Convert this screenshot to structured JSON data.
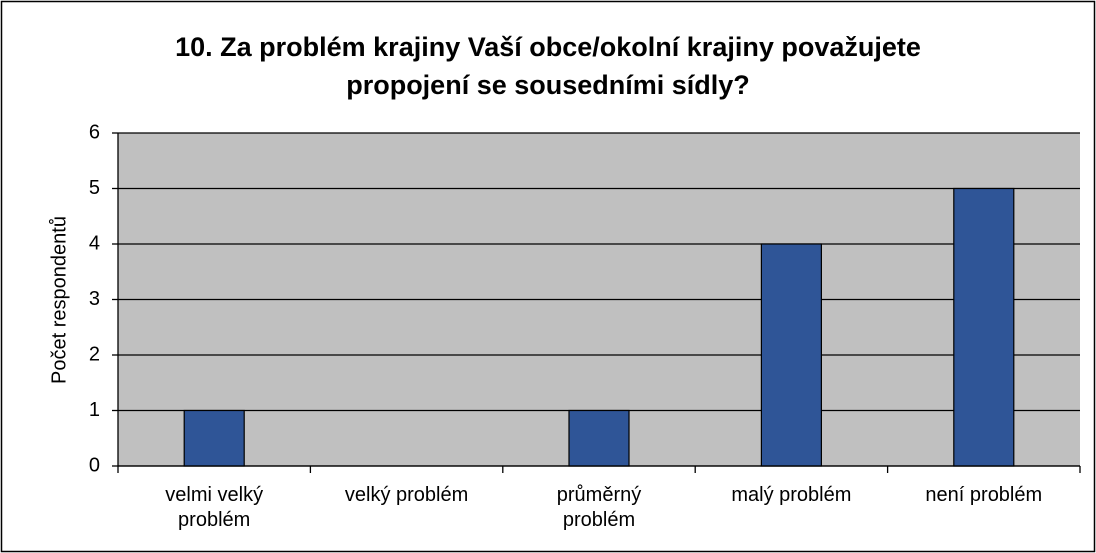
{
  "chart_data": {
    "type": "bar",
    "title": "10. Za problém krajiny Vaší obce/okolní krajiny považujete propojení se sousedními sídly?",
    "y_label": "Počet respondentů",
    "categories": [
      "velmi velký problém",
      "velký problém",
      "průměrný problém",
      "malý problém",
      "není problém"
    ],
    "values": [
      1,
      0,
      1,
      4,
      5
    ],
    "color": "#2f5597",
    "ylim": [
      0,
      6
    ],
    "yticks": [
      0,
      1,
      2,
      3,
      4,
      5,
      6
    ],
    "grid": true
  }
}
